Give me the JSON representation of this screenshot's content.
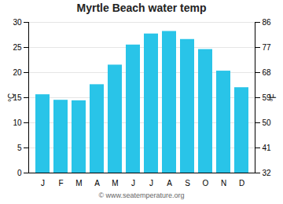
{
  "chart_data": {
    "type": "bar",
    "title": "Myrtle Beach water temp",
    "categories": [
      "J",
      "F",
      "M",
      "A",
      "M",
      "J",
      "J",
      "A",
      "S",
      "O",
      "N",
      "D"
    ],
    "values": [
      15.6,
      14.5,
      14.4,
      17.6,
      21.5,
      25.5,
      27.7,
      28.2,
      26.6,
      24.6,
      20.3,
      17.0
    ],
    "color": "#29c4e8",
    "ylabel": "°C",
    "ylim": [
      0,
      30
    ],
    "yticks": [
      0,
      5,
      10,
      15,
      20,
      25,
      30
    ],
    "y2label": "°F",
    "y2lim": [
      32,
      86
    ],
    "y2ticks": [
      32,
      41,
      50,
      59,
      68,
      77,
      86
    ],
    "grid": true,
    "annotations": [
      "© www.seatemperature.org"
    ]
  }
}
